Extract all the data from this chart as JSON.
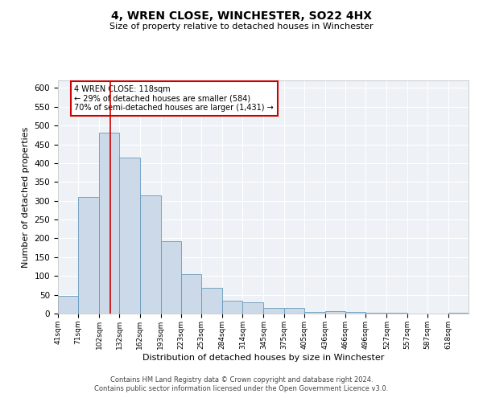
{
  "title": "4, WREN CLOSE, WINCHESTER, SO22 4HX",
  "subtitle": "Size of property relative to detached houses in Winchester",
  "xlabel": "Distribution of detached houses by size in Winchester",
  "ylabel": "Number of detached properties",
  "bar_color": "#ccd9e8",
  "bar_edge_color": "#6699bb",
  "background_color": "#eef2f7",
  "grid_color": "#ffffff",
  "vline_x": 118,
  "vline_color": "#cc0000",
  "annotation_title": "4 WREN CLOSE: 118sqm",
  "annotation_line1": "← 29% of detached houses are smaller (584)",
  "annotation_line2": "70% of semi-detached houses are larger (1,431) →",
  "annotation_box_color": "#ffffff",
  "annotation_box_edge": "#cc0000",
  "bins": [
    41,
    71,
    102,
    132,
    162,
    193,
    223,
    253,
    284,
    314,
    345,
    375,
    405,
    436,
    466,
    496,
    527,
    557,
    587,
    618,
    648
  ],
  "bar_heights": [
    46,
    311,
    480,
    415,
    315,
    193,
    105,
    69,
    35,
    30,
    14,
    14,
    5,
    7,
    5,
    2,
    3,
    0,
    0,
    2
  ],
  "ylim": [
    0,
    620
  ],
  "yticks": [
    0,
    50,
    100,
    150,
    200,
    250,
    300,
    350,
    400,
    450,
    500,
    550,
    600
  ],
  "footer_line1": "Contains HM Land Registry data © Crown copyright and database right 2024.",
  "footer_line2": "Contains public sector information licensed under the Open Government Licence v3.0."
}
